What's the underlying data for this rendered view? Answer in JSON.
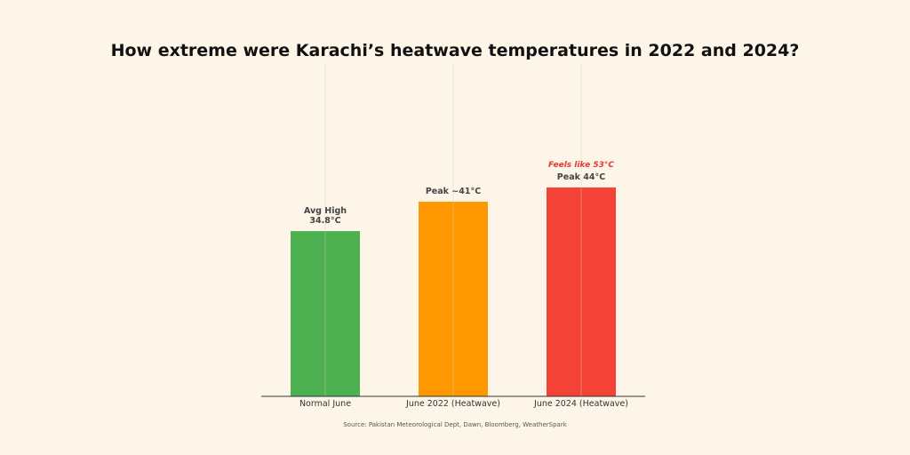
{
  "chart_data": {
    "type": "bar",
    "title": "How extreme were Karachi’s heatwave temperatures in 2022 and 2024?",
    "categories": [
      "Normal June",
      "June 2022 (Heatwave)",
      "June 2024 (Heatwave)"
    ],
    "values": [
      34.8,
      41,
      44
    ],
    "value_labels": [
      [
        "Avg High",
        "34.8°C"
      ],
      [
        "Peak ~41°C"
      ],
      [
        "Peak 44°C"
      ]
    ],
    "colors": [
      "#4caf50",
      "#ff9800",
      "#f44336"
    ],
    "annotation": {
      "text": "Feels like 53°C",
      "category_index": 2,
      "color": "#e53935"
    },
    "xlabel": "",
    "ylabel": "",
    "ylim": [
      0,
      70
    ],
    "y_axis_visible": false,
    "grid": "vertical",
    "source": "Source: Pakistan Meteorological Dept, Dawn, Bloomberg, WeatherSpark"
  }
}
